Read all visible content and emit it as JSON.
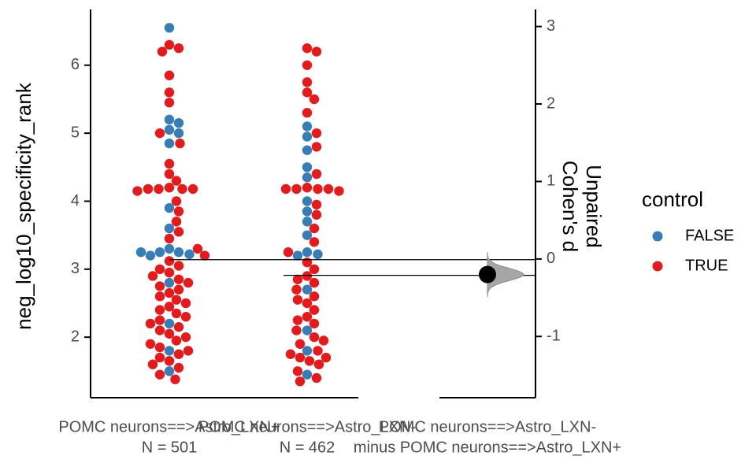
{
  "chart_data": {
    "type": "swarm_estimation",
    "y_label": "neg_log10_specificity_rank",
    "y2_label": [
      "Unpaired",
      "Cohen's d"
    ],
    "ylim": [
      1.11,
      6.82
    ],
    "yticks": [
      2,
      3,
      4,
      5,
      6
    ],
    "y2lim": [
      -1.79,
      3.22
    ],
    "y2ticks": [
      -1,
      0,
      1,
      2,
      3
    ],
    "legend_title": "control",
    "legend_position": "right",
    "groups": [
      {
        "label_lines": [
          "POMC neurons==>Astro_LXN+",
          "N = 501"
        ],
        "mean": 3.14,
        "series": [
          {
            "name": "FALSE",
            "color": "#377eb8",
            "values": [
              6.55,
              5.2,
              5.15,
              5.05,
              5.0,
              4.85,
              3.9,
              3.6,
              3.3,
              3.25,
              3.25,
              3.22,
              3.2,
              3.25,
              2.8,
              2.2,
              1.8,
              1.5
            ]
          },
          {
            "name": "TRUE",
            "color": "#e41a1c",
            "values": [
              6.3,
              6.25,
              6.2,
              5.85,
              5.6,
              5.45,
              5.0,
              4.85,
              4.55,
              4.4,
              4.3,
              4.2,
              4.18,
              4.18,
              4.18,
              4.18,
              4.15,
              4.0,
              3.85,
              3.7,
              3.55,
              3.45,
              3.3,
              3.2,
              3.12,
              3.05,
              2.95,
              2.85,
              2.75,
              2.65,
              2.55,
              2.45,
              2.35,
              2.25,
              2.15,
              2.05,
              1.95,
              1.85,
              1.75,
              1.65,
              1.55,
              1.45,
              1.38,
              3.0,
              2.9,
              2.8,
              2.7,
              2.6,
              2.5,
              2.4,
              2.3,
              2.2,
              2.1,
              2.0,
              1.9,
              1.8,
              1.7,
              1.6
            ]
          }
        ]
      },
      {
        "label_lines": [
          "POMC neurons==>Astro_LXN-",
          "N = 462"
        ],
        "mean": 2.91,
        "series": [
          {
            "name": "FALSE",
            "color": "#377eb8",
            "values": [
              5.1,
              4.95,
              4.75,
              4.5,
              4.35,
              4.0,
              3.85,
              3.7,
              3.5,
              3.25,
              3.22,
              3.2,
              2.7,
              2.1,
              1.8,
              1.45
            ]
          },
          {
            "name": "TRUE",
            "color": "#e41a1c",
            "values": [
              6.25,
              6.2,
              6.0,
              5.75,
              5.6,
              5.5,
              5.3,
              5.0,
              4.8,
              4.4,
              4.2,
              4.18,
              4.18,
              4.18,
              4.18,
              4.15,
              3.95,
              3.8,
              3.6,
              3.4,
              3.25,
              3.1,
              3.0,
              2.9,
              2.8,
              2.7,
              2.6,
              2.5,
              2.4,
              2.3,
              2.2,
              2.1,
              2.0,
              1.9,
              1.8,
              1.7,
              1.65,
              1.6,
              1.5,
              1.4,
              1.35,
              2.85,
              2.55,
              2.25,
              1.95,
              1.75,
              1.7
            ]
          }
        ]
      }
    ],
    "effect": {
      "label_lines": [
        "POMC neurons==>Astro_LXN-",
        "minus POMC neurons==>Astro_LXN+"
      ],
      "value": -0.2
    }
  }
}
